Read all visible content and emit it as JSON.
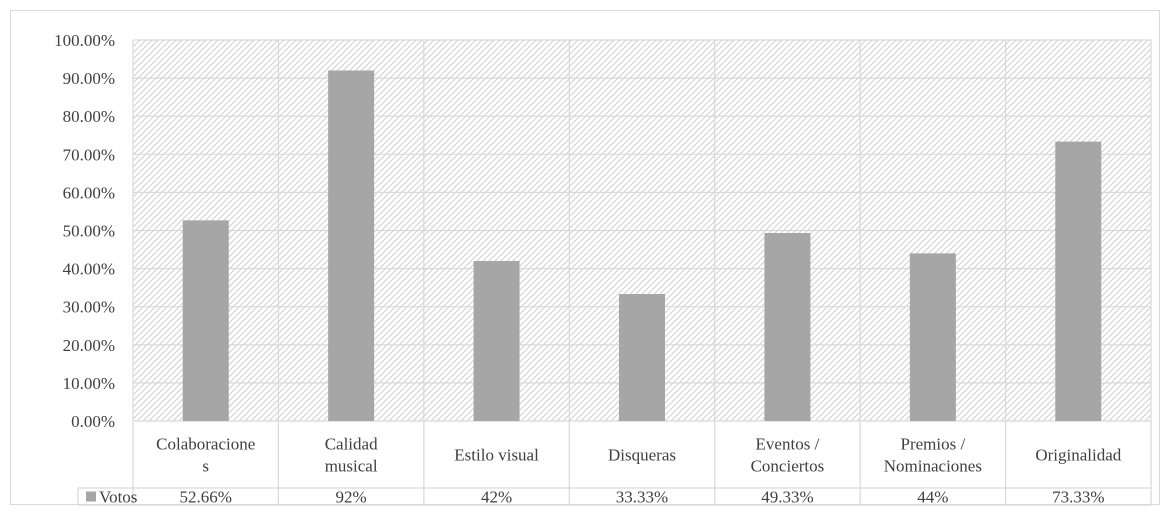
{
  "chart_data": {
    "type": "bar",
    "categories": [
      [
        "Colaboracione",
        "s"
      ],
      [
        "Calidad",
        "musical"
      ],
      [
        "Estilo visual"
      ],
      [
        "Disqueras"
      ],
      [
        "Eventos /",
        "Conciertos"
      ],
      [
        "Premios /",
        "Nominaciones"
      ],
      [
        "Originalidad"
      ]
    ],
    "series": [
      {
        "name": "Votos",
        "values": [
          52.66,
          92,
          42,
          33.33,
          49.33,
          44,
          73.33
        ],
        "data_labels": [
          "52.66%",
          "92%",
          "42%",
          "33.33%",
          "49.33%",
          "44%",
          "73.33%"
        ],
        "color": "#a6a6a6"
      }
    ],
    "y_tick_labels": [
      "0.00%",
      "10.00%",
      "20.00%",
      "30.00%",
      "40.00%",
      "50.00%",
      "60.00%",
      "70.00%",
      "80.00%",
      "90.00%",
      "100.00%"
    ],
    "ylim": [
      0,
      100
    ],
    "y_unit": "percent",
    "grid": true,
    "plot_background": "diagonal-hatch",
    "legend": "data-table-left",
    "colors": {
      "bar": "#a6a6a6",
      "grid": "#d9d9d9",
      "hatch": "#d0d0d0",
      "text": "#404040"
    }
  }
}
